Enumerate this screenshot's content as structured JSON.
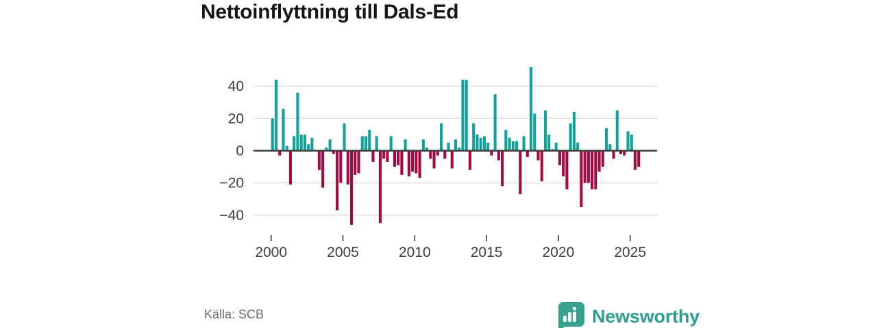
{
  "title": "Nettoinflyttning till Dals-Ed",
  "source": "Källa: SCB",
  "branding": {
    "name": "Newsworthy",
    "wordmark_color": "#2E9D92",
    "icon_color": "#36A38F"
  },
  "colors": {
    "positive": "#12A29B",
    "negative": "#A30A41",
    "grid": "#DDDDDD",
    "zero_line": "#3A3A3A",
    "axis_text": "#3D3D3D"
  },
  "chart_data": {
    "type": "bar",
    "title": "Nettoinflyttning till Dals-Ed",
    "ylabel": "",
    "xlabel": "",
    "frequency": "quarterly",
    "period_start": "2000Q1",
    "period_end": "2025Q3",
    "values": [
      20,
      44,
      -3,
      26,
      3,
      -21,
      9,
      36,
      10,
      10,
      4,
      8,
      0,
      -12,
      -23,
      2,
      7,
      -2,
      -37,
      -20,
      17,
      -21,
      -46,
      -15,
      -14,
      9,
      9,
      13,
      -7,
      9,
      -45,
      -5,
      -7,
      9,
      -10,
      -9,
      -15,
      7,
      -16,
      -13,
      -14,
      -17,
      7,
      2,
      -5,
      -11,
      -3,
      17,
      -5,
      5,
      -11,
      7,
      2,
      44,
      44,
      -12,
      17,
      10,
      8,
      9,
      5,
      -3,
      35,
      -6,
      -22,
      13,
      8,
      6,
      6,
      -27,
      9,
      -4,
      52,
      23,
      -6,
      -19,
      25,
      10,
      1,
      5,
      -9,
      -16,
      -24,
      17,
      24,
      5,
      -35,
      -20,
      -20,
      -24,
      -24,
      -13,
      -10,
      14,
      4,
      -5,
      25,
      -2,
      -3,
      12,
      10,
      -12,
      -10
    ],
    "x_tick_labels": [
      "2000",
      "2005",
      "2010",
      "2015",
      "2020",
      "2025"
    ],
    "x_tick_years": [
      2000,
      2005,
      2010,
      2015,
      2020,
      2025
    ],
    "y_tick_labels": [
      "40",
      "20",
      "0",
      "−20",
      "−40"
    ],
    "y_ticks": [
      40,
      20,
      0,
      -20,
      -40
    ],
    "ylim": [
      -52,
      55
    ],
    "grid": true,
    "legend": "none",
    "positive_color": "#12A29B",
    "negative_color": "#A30A41"
  }
}
